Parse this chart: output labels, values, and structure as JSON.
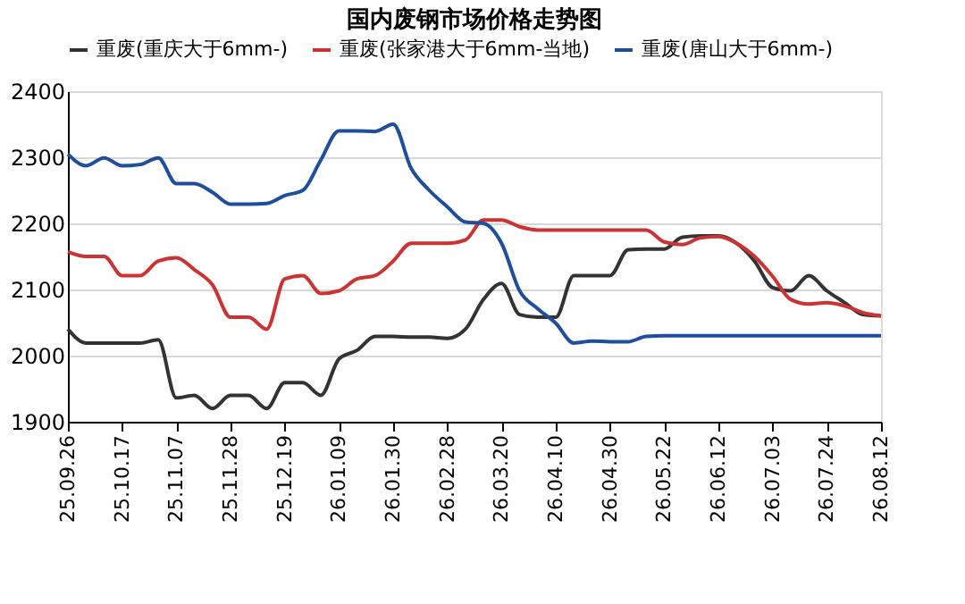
{
  "chart_data": {
    "type": "line",
    "title": "国内废钢市场价格走势图",
    "categories": [
      "25.09.26",
      null,
      null,
      "25.10.17",
      null,
      null,
      "25.11.07",
      null,
      null,
      "25.11.28",
      null,
      null,
      "25.12.19",
      null,
      null,
      "26.01.09",
      null,
      null,
      "26.01.30",
      null,
      null,
      "26.02.28",
      null,
      null,
      "26.03.20",
      null,
      null,
      "26.04.10",
      null,
      null,
      "26.04.30",
      null,
      null,
      "26.05.22",
      null,
      null,
      "26.06.12",
      null,
      null,
      "26.07.03",
      null,
      null,
      "26.07.24",
      null,
      null,
      "26.08.12"
    ],
    "series": [
      {
        "name": "重废(重庆大于6mm-)",
        "color": "#333333",
        "values": [
          2040,
          2019,
          2019,
          2019,
          2019,
          2024,
          1936,
          1940,
          1920,
          1940,
          1940,
          1920,
          1959,
          1959,
          1940,
          1995,
          2008,
          2029,
          2029,
          2028,
          2028,
          2026,
          2040,
          2085,
          2109,
          2062,
          2058,
          2058,
          2121,
          2121,
          2121,
          2160,
          2161,
          2161,
          2179,
          2181,
          2181,
          2170,
          2143,
          2103,
          2098,
          2121,
          2098,
          2080,
          2062,
          2060
        ]
      },
      {
        "name": "重废(张家港大于6mm-当地)",
        "color": "#cc3333",
        "values": [
          2157,
          2150,
          2150,
          2121,
          2121,
          2143,
          2148,
          2130,
          2107,
          2058,
          2058,
          2040,
          2116,
          2121,
          2094,
          2098,
          2116,
          2121,
          2143,
          2170,
          2170,
          2170,
          2175,
          2205,
          2205,
          2195,
          2190,
          2190,
          2190,
          2190,
          2190,
          2190,
          2190,
          2172,
          2168,
          2178,
          2180,
          2170,
          2150,
          2120,
          2085,
          2078,
          2080,
          2075,
          2065,
          2060
        ]
      },
      {
        "name": "重废(唐山大于6mm-)",
        "color": "#1f4e9c",
        "values": [
          2305,
          2287,
          2299,
          2287,
          2289,
          2299,
          2260,
          2260,
          2247,
          2229,
          2229,
          2230,
          2242,
          2250,
          2296,
          2340,
          2340,
          2339,
          2350,
          2283,
          2250,
          2225,
          2202,
          2200,
          2170,
          2098,
          2071,
          2049,
          2019,
          2022,
          2021,
          2021,
          2029,
          2030,
          2030,
          2030,
          2030,
          2030,
          2030,
          2030,
          2030,
          2030,
          2030,
          2030,
          2030,
          2030
        ]
      }
    ],
    "ylim": [
      1900,
      2400
    ],
    "yticks": [
      1900,
      2000,
      2100,
      2200,
      2300,
      2400
    ],
    "grid": "y",
    "legend": "top",
    "marker": "none",
    "line_style": "solid"
  }
}
